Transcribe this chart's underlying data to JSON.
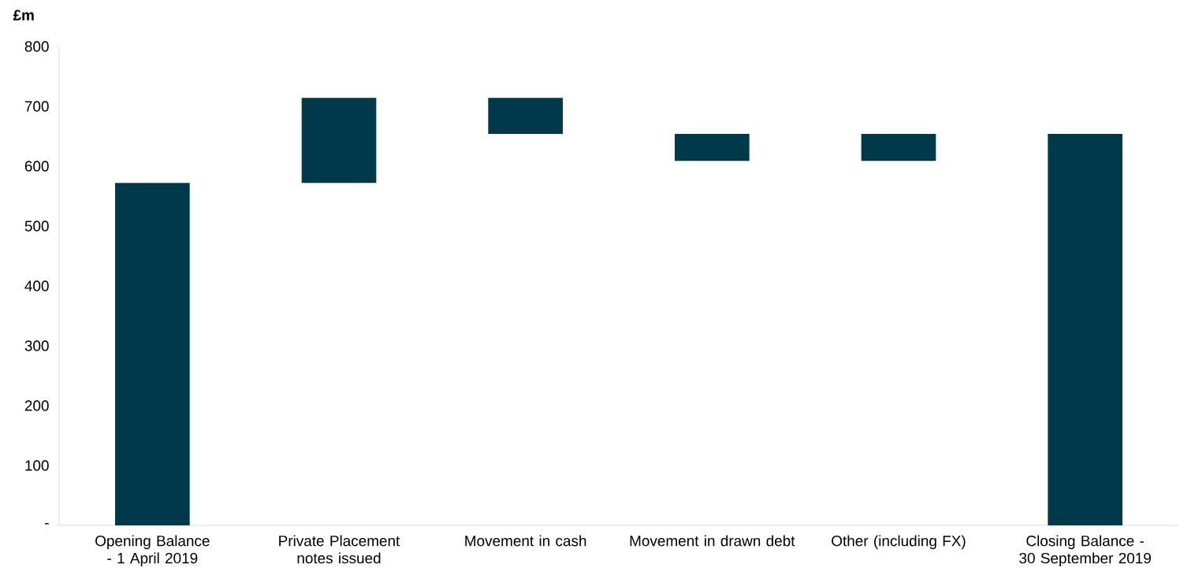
{
  "chart_data": {
    "type": "bar",
    "ylabel": "£m",
    "categories": [
      "Opening Balance - 1 April 2019",
      "Private Placement notes issued",
      "Movement in cash",
      "Movement in drawn debt",
      "Other (including FX)",
      "Closing Balance - 30 September 2019"
    ],
    "values": [
      572,
      142,
      -60,
      -45,
      45,
      654
    ],
    "base": [
      0,
      572,
      714,
      654,
      609,
      0
    ],
    "color": "#003a4a",
    "ylim": [
      0,
      800
    ],
    "yticks": [
      {
        "value": 0,
        "label": "-"
      },
      100,
      200,
      300,
      400,
      500,
      600,
      700,
      800
    ],
    "grid": false
  }
}
